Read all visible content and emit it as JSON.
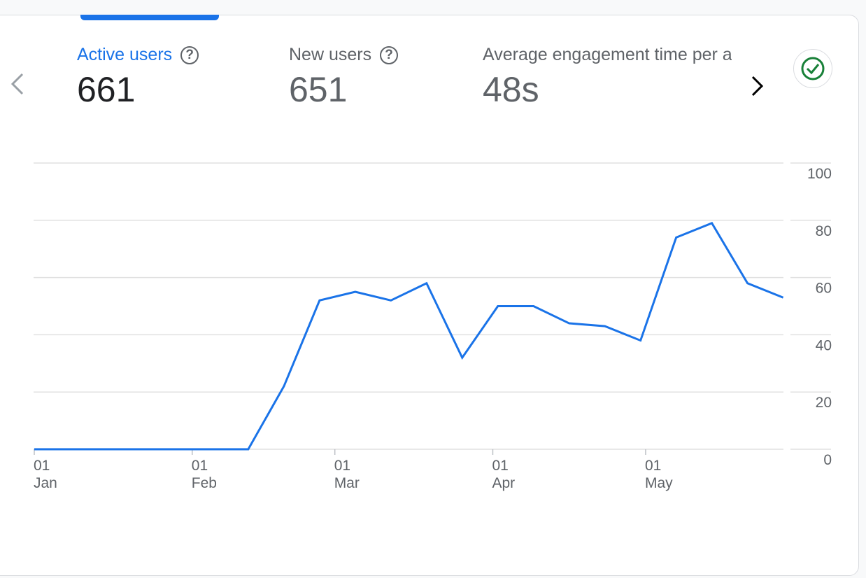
{
  "metrics": [
    {
      "label": "Active users",
      "value": "661",
      "active": true
    },
    {
      "label": "New users",
      "value": "651",
      "active": false
    },
    {
      "label": "Average engagement time per active user",
      "value": "48s",
      "active": false
    }
  ],
  "icons": {
    "prev": "chevron-left-icon",
    "next": "chevron-right-icon",
    "help": "help-circle-icon",
    "status": "check-circle-icon"
  },
  "colors": {
    "accent": "#1a73e8",
    "status_ok": "#188038"
  },
  "chart_data": {
    "type": "line",
    "title": "",
    "xlabel": "",
    "ylabel": "",
    "ylim": [
      0,
      100
    ],
    "yticks": [
      "0",
      "20",
      "40",
      "60",
      "80",
      "100"
    ],
    "y_axis_side": "right",
    "grid": true,
    "xticks": [
      {
        "date": "01-01",
        "day": "01",
        "month": "Jan"
      },
      {
        "date": "02-01",
        "day": "01",
        "month": "Feb"
      },
      {
        "date": "03-01",
        "day": "01",
        "month": "Mar"
      },
      {
        "date": "04-01",
        "day": "01",
        "month": "Apr"
      },
      {
        "date": "05-01",
        "day": "01",
        "month": "May"
      }
    ],
    "series": [
      {
        "color": "#1a73e8",
        "x": [
          "01-01",
          "01-08",
          "01-15",
          "01-22",
          "01-29",
          "02-05",
          "02-12",
          "02-19",
          "02-26",
          "03-05",
          "03-12",
          "03-19",
          "03-26",
          "04-02",
          "04-09",
          "04-16",
          "04-23",
          "04-30",
          "05-07",
          "05-14",
          "05-21",
          "05-28"
        ],
        "values": [
          0,
          0,
          0,
          0,
          0,
          0,
          0,
          22,
          52,
          55,
          52,
          58,
          32,
          50,
          50,
          44,
          43,
          38,
          74,
          79,
          58,
          53
        ]
      }
    ]
  }
}
